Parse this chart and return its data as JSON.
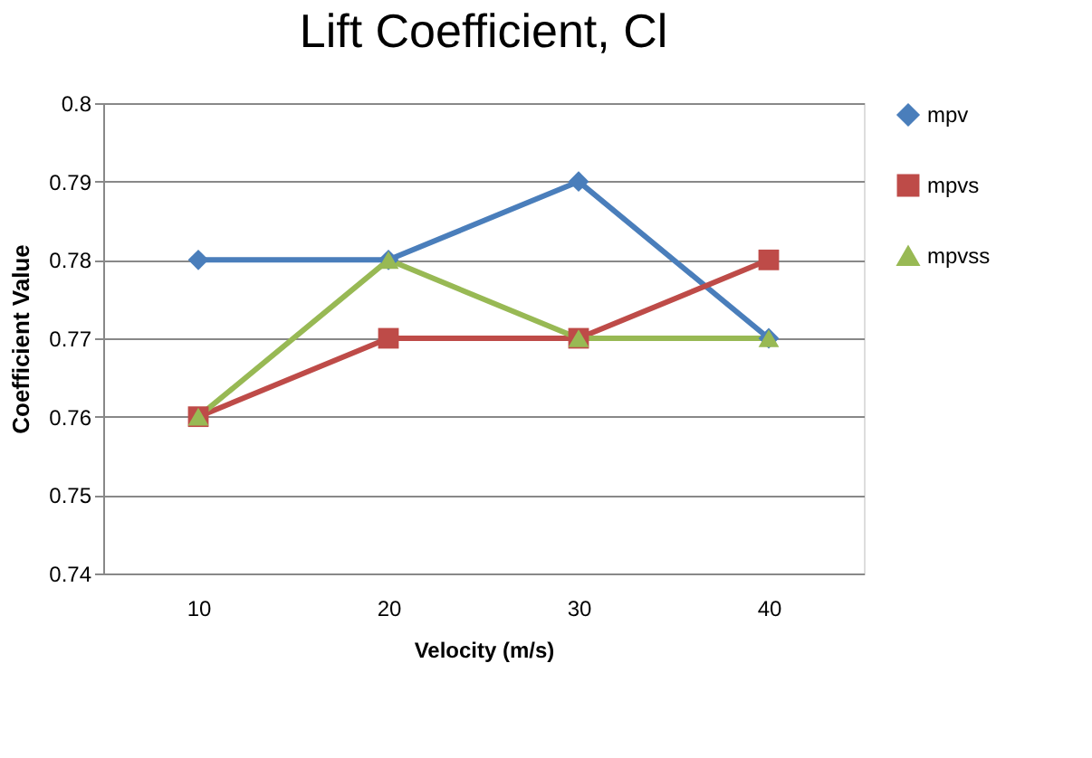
{
  "chart_data": {
    "type": "line",
    "title": "Lift Coefficient, Cl",
    "xlabel": "Velocity (m/s)",
    "ylabel": "Coefficient Value",
    "categories": [
      "10",
      "20",
      "30",
      "40"
    ],
    "series": [
      {
        "name": "mpv",
        "color": "#4a7ebb",
        "marker": "diamond",
        "values": [
          0.78,
          0.78,
          0.79,
          0.77
        ]
      },
      {
        "name": "mpvs",
        "color": "#be4b48",
        "marker": "square",
        "values": [
          0.76,
          0.77,
          0.77,
          0.78
        ]
      },
      {
        "name": "mpvss",
        "color": "#98b954",
        "marker": "triangle",
        "values": [
          0.76,
          0.78,
          0.77,
          0.77
        ]
      }
    ],
    "ylim": [
      0.74,
      0.8
    ],
    "yticks": [
      0.74,
      0.75,
      0.76,
      0.77,
      0.78,
      0.79,
      {
        "value": 0.8,
        "label": "0.8"
      }
    ],
    "grid": "y",
    "legend": "right",
    "line_style": "solid"
  }
}
